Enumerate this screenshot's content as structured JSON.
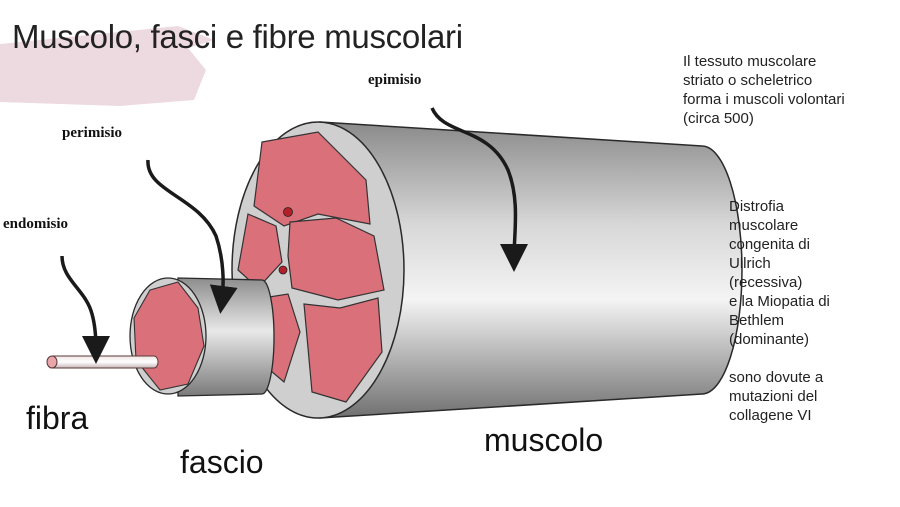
{
  "slide": {
    "title": "Muscolo, fasci e fibre muscolari",
    "accent_color": "#eddae0"
  },
  "diagram": {
    "labels": {
      "epimisio": "epimisio",
      "perimisio": "perimisio",
      "endomisio": "endomisio"
    },
    "parts": {
      "fibra": "fibra",
      "fascio": "fascio",
      "muscolo": "muscolo"
    },
    "colors": {
      "tissue": "#d9707a",
      "sheath": "#c9c9c9",
      "vessel": "#b3202a",
      "outline": "#222222"
    }
  },
  "notes": {
    "intro": [
      "Il tessuto muscolare",
      "striato o scheletrico",
      "forma i muscoli volontari",
      "(circa 500)"
    ],
    "disease": [
      "Distrofia",
      "muscolare",
      "congenita di",
      "Ullrich",
      "(recessiva)",
      "e la Miopatia di",
      "Bethlem",
      "(dominante)"
    ],
    "cause": [
      "sono dovute a",
      "mutazioni del",
      "collagene VI"
    ]
  }
}
